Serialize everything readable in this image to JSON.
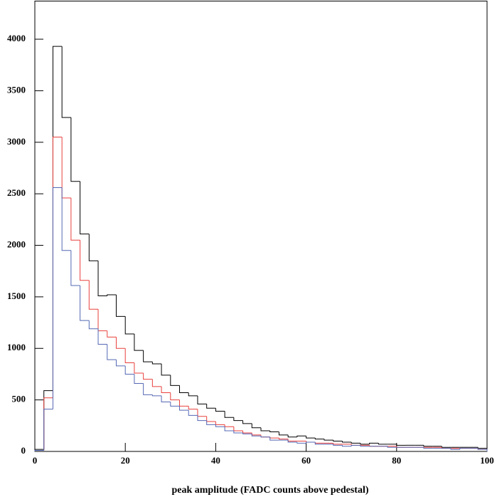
{
  "chart_data": {
    "type": "histogram",
    "xlabel": "peak amplitude (FADC counts above pedestal)",
    "bins": [
      0,
      2,
      4,
      6,
      8,
      10,
      12,
      14,
      16,
      18,
      20,
      22,
      24,
      26,
      28,
      30,
      32,
      34,
      36,
      38,
      40,
      42,
      44,
      46,
      48,
      50,
      52,
      54,
      56,
      58,
      60,
      62,
      64,
      66,
      68,
      70,
      72,
      74,
      76,
      78,
      80,
      82,
      84,
      86,
      88,
      90,
      92,
      94,
      96,
      98,
      100
    ],
    "series": [
      {
        "color": "#000000",
        "values": [
          20,
          590,
          3930,
          3240,
          2620,
          2110,
          1850,
          1510,
          1520,
          1310,
          1140,
          980,
          870,
          850,
          740,
          640,
          570,
          540,
          460,
          420,
          390,
          330,
          300,
          270,
          230,
          200,
          190,
          160,
          140,
          150,
          130,
          120,
          110,
          100,
          90,
          80,
          70,
          80,
          70,
          70,
          60,
          60,
          60,
          50,
          50,
          40,
          40,
          40,
          40,
          30
        ]
      },
      {
        "color": "#e8403c",
        "values": [
          10,
          520,
          3050,
          2460,
          2050,
          1660,
          1380,
          1170,
          1110,
          1000,
          860,
          760,
          700,
          630,
          570,
          500,
          440,
          410,
          340,
          290,
          260,
          240,
          200,
          180,
          160,
          140,
          130,
          120,
          100,
          100,
          90,
          80,
          80,
          70,
          70,
          60,
          60,
          50,
          50,
          50,
          40,
          40,
          40,
          40,
          40,
          30,
          30,
          30,
          30,
          20
        ]
      },
      {
        "color": "#5468b4",
        "values": [
          10,
          410,
          2560,
          1950,
          1610,
          1270,
          1190,
          1040,
          890,
          830,
          750,
          660,
          550,
          540,
          480,
          440,
          400,
          350,
          300,
          260,
          240,
          200,
          180,
          170,
          150,
          140,
          110,
          110,
          90,
          80,
          90,
          70,
          70,
          60,
          50,
          60,
          50,
          50,
          50,
          40,
          40,
          40,
          40,
          30,
          30,
          30,
          20,
          30,
          30,
          20
        ]
      }
    ],
    "xlim": [
      0,
      100
    ],
    "xticks": [
      0,
      20,
      40,
      60,
      80,
      100
    ],
    "ylim": [
      0,
      4370
    ],
    "yticks": [
      0,
      500,
      1000,
      1500,
      2000,
      2500,
      3000,
      3500,
      4000
    ]
  }
}
